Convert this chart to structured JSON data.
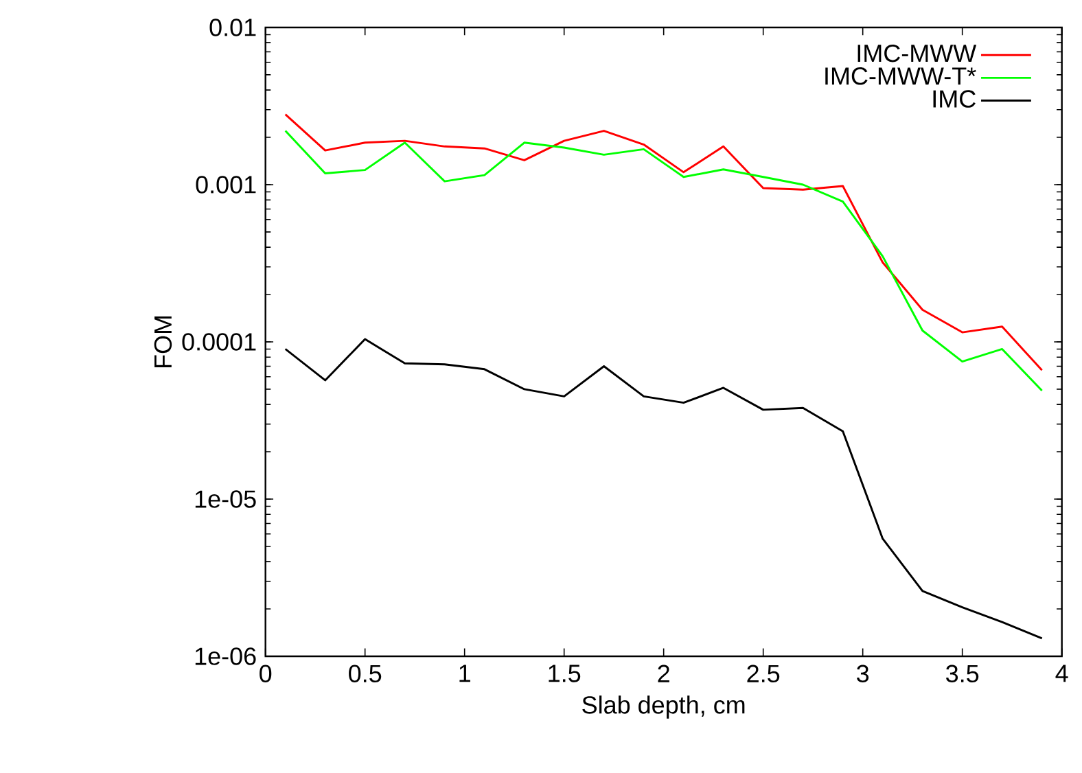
{
  "chart_data": {
    "type": "line",
    "xlabel": "Slab depth, cm",
    "ylabel": "FOM",
    "log": "y",
    "legend": "top right",
    "marker": "none",
    "line_style": "solid",
    "grid": false,
    "x": [
      0.1,
      0.3,
      0.5,
      0.7,
      0.9,
      1.1,
      1.3,
      1.5,
      1.7,
      1.9,
      2.1,
      2.3,
      2.5,
      2.7,
      2.9,
      3.1,
      3.3,
      3.5,
      3.7,
      3.9
    ],
    "xlim": [
      0,
      4
    ],
    "xticks": [
      0,
      0.5,
      1,
      1.5,
      2,
      2.5,
      3,
      3.5,
      4
    ],
    "ylim": [
      1e-06,
      0.01
    ],
    "yticks": [
      {
        "value": 1e-06,
        "label": "1e-06"
      },
      {
        "value": 1e-05,
        "label": "1e-05"
      },
      {
        "value": 0.0001,
        "label": "0.0001"
      },
      {
        "value": 0.001,
        "label": "0.001"
      },
      {
        "value": 0.01,
        "label": "0.01"
      }
    ],
    "series": [
      {
        "name": "IMC-MWW",
        "color": "#ff0000",
        "values": [
          0.0028,
          0.00165,
          0.00185,
          0.0019,
          0.00175,
          0.0017,
          0.00143,
          0.0019,
          0.0022,
          0.0018,
          0.0012,
          0.00175,
          0.00095,
          0.00093,
          0.00098,
          0.00032,
          0.00016,
          0.000115,
          0.000125,
          6.6e-05
        ]
      },
      {
        "name": "IMC-MWW-T*",
        "color": "#00ff00",
        "values": [
          0.0022,
          0.00118,
          0.00124,
          0.00185,
          0.00105,
          0.00115,
          0.00185,
          0.00172,
          0.00155,
          0.00168,
          0.00112,
          0.00125,
          0.00112,
          0.001,
          0.00078,
          0.00035,
          0.000118,
          7.5e-05,
          9e-05,
          4.9e-05
        ]
      },
      {
        "name": "IMC",
        "color": "#000000",
        "values": [
          9e-05,
          5.7e-05,
          0.000104,
          7.3e-05,
          7.2e-05,
          6.7e-05,
          5e-05,
          4.5e-05,
          7e-05,
          4.5e-05,
          4.1e-05,
          5.1e-05,
          3.7e-05,
          3.8e-05,
          2.7e-05,
          5.6e-06,
          2.6e-06,
          2.05e-06,
          1.65e-06,
          1.3e-06
        ]
      }
    ]
  }
}
